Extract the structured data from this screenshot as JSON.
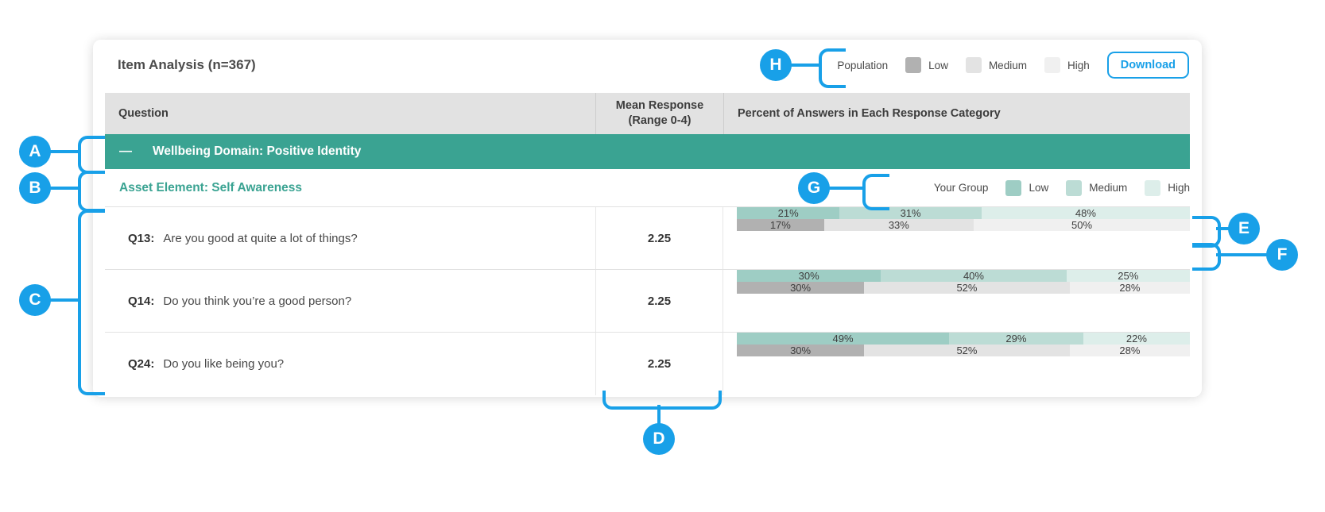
{
  "title": "Item Analysis (n=367)",
  "toolbar": {
    "population_legend": {
      "label": "Population",
      "items": [
        {
          "label": "Low",
          "color": "#b1b1b1"
        },
        {
          "label": "Medium",
          "color": "#e3e3e3"
        },
        {
          "label": "High",
          "color": "#f0f0f0"
        }
      ]
    },
    "download_label": "Download"
  },
  "table": {
    "header": {
      "question": "Question",
      "mean_line1": "Mean Response",
      "mean_line2": "(Range 0-4)",
      "percent": "Percent of Answers in Each Response Category"
    },
    "domain_row": {
      "collapse_icon": "—",
      "label": "Wellbeing Domain: Positive Identity"
    },
    "asset_row": {
      "label": "Asset Element: Self Awareness"
    },
    "group_legend": {
      "label": "Your Group",
      "items": [
        {
          "label": "Low",
          "color": "#9ecdc4"
        },
        {
          "label": "Medium",
          "color": "#bcdcd5"
        },
        {
          "label": "High",
          "color": "#ddeeea"
        }
      ]
    },
    "questions": [
      {
        "id": "Q13:",
        "text": "Are you good at quite a lot of things?",
        "mean": "2.25",
        "your_group": [
          21,
          31,
          48
        ],
        "population": [
          17,
          33,
          50
        ]
      },
      {
        "id": "Q14:",
        "text": "Do you think you’re a good person?",
        "mean": "2.25",
        "your_group": [
          30,
          40,
          25
        ],
        "population": [
          30,
          52,
          28
        ]
      },
      {
        "id": "Q24:",
        "text": "Do you like being you?",
        "mean": "2.25",
        "your_group": [
          49,
          29,
          22
        ],
        "population": [
          30,
          52,
          28
        ]
      }
    ]
  },
  "annotations": {
    "callouts": [
      "A",
      "B",
      "C",
      "D",
      "E",
      "F",
      "G",
      "H"
    ]
  },
  "colors": {
    "accent_blue": "#18a0e8",
    "teal": "#3aa392",
    "your_group_series": [
      "#9ecdc4",
      "#bcdcd5",
      "#ddeeea"
    ],
    "population_series": [
      "#b1b1b1",
      "#e3e3e3",
      "#f0f0f0"
    ]
  }
}
